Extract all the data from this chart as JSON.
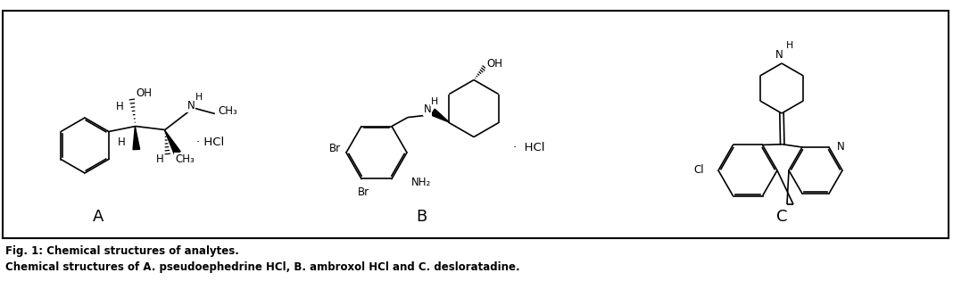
{
  "title_line1": "Fig. 1: Chemical structures of analytes.",
  "title_line2": "Chemical structures of A. pseudoephedrine HCl, B. ambroxol HCl and C. desloratadine.",
  "label_A": "A",
  "label_B": "B",
  "label_C": "C",
  "border_color": "#000000",
  "line_color": "#000000",
  "bg_color": "#ffffff",
  "text_color": "#000000",
  "font_size_caption": 8.5,
  "font_size_label": 13,
  "font_size_atom": 8.5,
  "lw": 1.2,
  "fig_width": 10.68,
  "fig_height": 3.43,
  "dpi": 100
}
